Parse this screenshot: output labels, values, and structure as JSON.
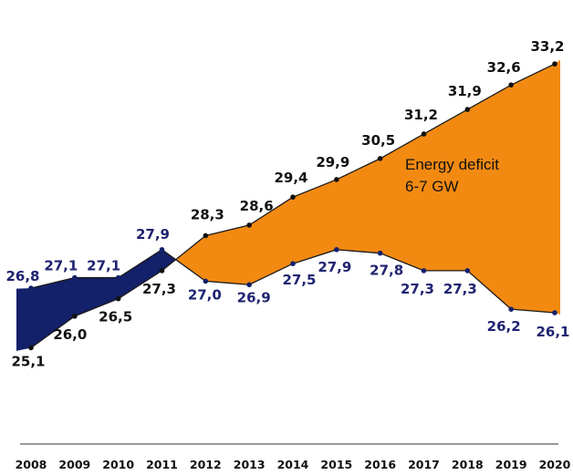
{
  "chart_data": {
    "type": "area",
    "x": [
      "2008",
      "2009",
      "2010",
      "2011",
      "2012",
      "2013",
      "2014",
      "2015",
      "2016",
      "2017",
      "2018",
      "2019",
      "2020"
    ],
    "series": [
      {
        "values": [
          25.1,
          26.0,
          26.5,
          27.3,
          28.3,
          28.6,
          29.4,
          29.9,
          30.5,
          31.2,
          31.9,
          32.6,
          33.2
        ],
        "labels": [
          "25,1",
          "26,0",
          "26,5",
          "27,3",
          "28,3",
          "28,6",
          "29,4",
          "29,9",
          "30,5",
          "31,2",
          "31,9",
          "32,6",
          "33,2"
        ]
      },
      {
        "values": [
          26.8,
          27.1,
          27.1,
          27.9,
          27.0,
          26.9,
          27.5,
          27.9,
          27.8,
          27.3,
          27.3,
          26.2,
          26.1
        ],
        "labels": [
          "26,8",
          "27,1",
          "27,1",
          "27,9",
          "27,0",
          "26,9",
          "27,5",
          "27,9",
          "27,8",
          "27,3",
          "27,3",
          "26,2",
          "26,1"
        ]
      }
    ],
    "annotation": [
      "Energy deficit",
      "6-7 GW"
    ],
    "colors": {
      "surplus": "#13206a",
      "deficit": "#f28a12",
      "line": "#1a1a1a",
      "supply_label": "#1f2370"
    },
    "ylim": [
      24.5,
      33.5
    ],
    "grid": false,
    "legend": "none"
  }
}
